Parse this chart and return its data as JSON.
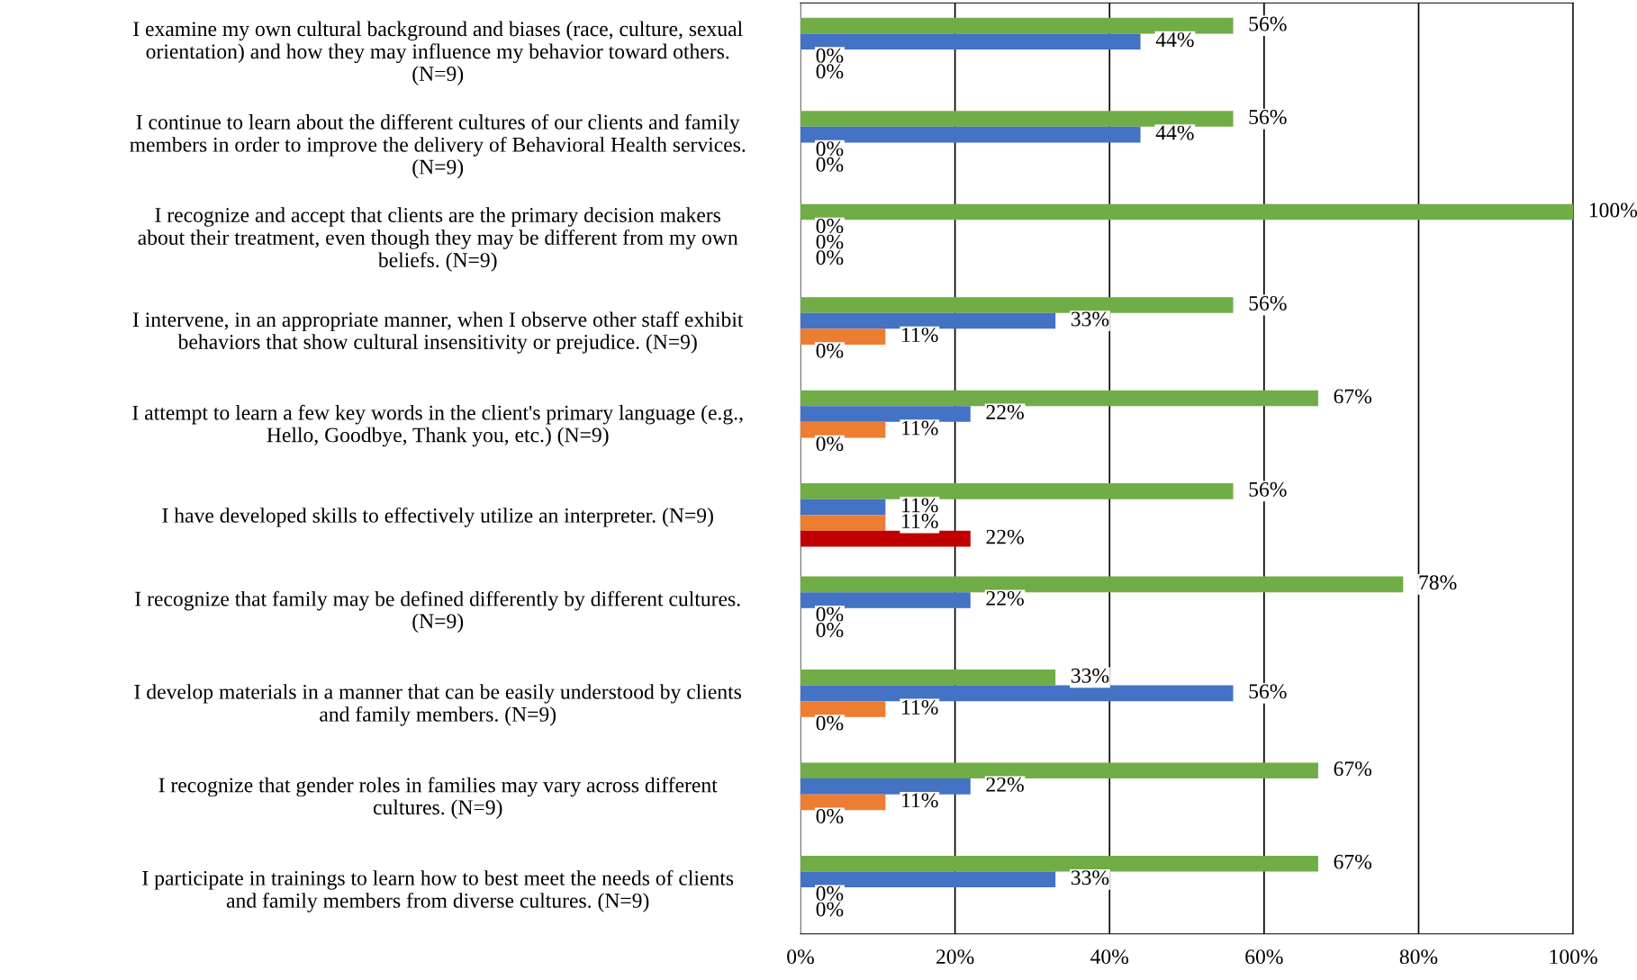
{
  "chart_data": {
    "type": "bar",
    "orientation": "horizontal",
    "categories": [
      "I examine my own cultural background and biases (race, culture, sexual\norientation) and how they may influence my behavior toward others.\n(N=9)",
      "I continue to learn about the different cultures of our clients and family\nmembers in order to improve the delivery of Behavioral Health services.\n(N=9)",
      "I recognize and accept that clients are the primary decision makers\nabout their treatment, even though they may be different from my own\nbeliefs. (N=9)",
      "I intervene, in an appropriate manner, when I observe other staff exhibit\nbehaviors that show cultural insensitivity or prejudice. (N=9)",
      "I attempt to learn a few key words in the client's primary language (e.g.,\nHello, Goodbye, Thank you, etc.) (N=9)",
      "I have developed skills to effectively utilize an interpreter. (N=9)",
      "I recognize that family may be defined differently by different cultures.\n(N=9)",
      "I develop materials in a manner that can be easily understood by clients\nand family members. (N=9)",
      "I recognize that gender roles in families may vary across different\ncultures. (N=9)",
      "I participate in trainings to learn how to best meet the needs of clients\nand family members from diverse cultures. (N=9)"
    ],
    "series": [
      {
        "color": "#70ad47",
        "values": [
          56,
          56,
          100,
          56,
          67,
          56,
          78,
          33,
          67,
          67
        ],
        "value_labels": [
          "56%",
          "56%",
          "100%",
          "56%",
          "67%",
          "56%",
          "78%",
          "33%",
          "67%",
          "67%"
        ]
      },
      {
        "color": "#4472c4",
        "values": [
          44,
          44,
          0,
          33,
          22,
          11,
          22,
          56,
          22,
          33
        ],
        "value_labels": [
          "44%",
          "44%",
          "0%",
          "33%",
          "22%",
          "11%",
          "22%",
          "56%",
          "22%",
          "33%"
        ]
      },
      {
        "color": "#ed7d31",
        "values": [
          0,
          0,
          0,
          11,
          11,
          11,
          0,
          11,
          11,
          0
        ],
        "value_labels": [
          "0%",
          "0%",
          "0%",
          "11%",
          "11%",
          "11%",
          "0%",
          "11%",
          "11%",
          "0%"
        ]
      },
      {
        "color": "#c00000",
        "values": [
          0,
          0,
          0,
          0,
          0,
          22,
          0,
          0,
          0,
          0
        ],
        "value_labels": [
          "0%",
          "0%",
          "0%",
          "0%",
          "0%",
          "22%",
          "0%",
          "0%",
          "0%",
          "0%"
        ]
      }
    ],
    "xlim": [
      0,
      100
    ],
    "xticks": [
      {
        "value": 0,
        "label": "0%"
      },
      {
        "value": 20,
        "label": "20%"
      },
      {
        "value": 40,
        "label": "40%"
      },
      {
        "value": 60,
        "label": "60%"
      },
      {
        "value": 80,
        "label": "80%"
      },
      {
        "value": 100,
        "label": "100%"
      }
    ],
    "grid": "x",
    "legend": false
  }
}
